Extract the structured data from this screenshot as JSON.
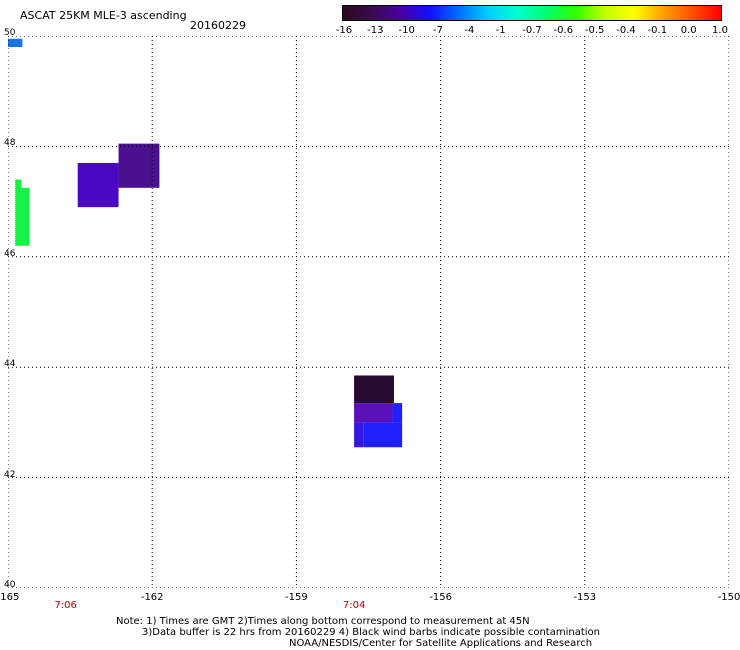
{
  "header": {
    "title": "ASCAT 25KM MLE-3 ascending",
    "date": "20160229"
  },
  "colorbar": {
    "labels": [
      "-16",
      "-13",
      "-10",
      "-7",
      "-4",
      "-1",
      "-0.7",
      "-0.6",
      "-0.5",
      "-0.4",
      "-0.1",
      "0.0",
      "1.0"
    ],
    "colors": [
      "#2a0a1e",
      "#3a0a50",
      "#4a00a0",
      "#1010ff",
      "#0070ff",
      "#00d0ff",
      "#00ffd0",
      "#00ff70",
      "#30ff00",
      "#c0ff00",
      "#ffff00",
      "#ffa000",
      "#ff5000",
      "#ff0000"
    ]
  },
  "map": {
    "lon_range": [
      -165,
      -150
    ],
    "lat_range": [
      40,
      50
    ],
    "lat_ticks": [
      "40",
      "42",
      "44",
      "46",
      "48",
      "50"
    ],
    "lon_ticks": [
      "-165",
      "-162",
      "-159",
      "-156",
      "-153",
      "-150"
    ],
    "time_labels": [
      {
        "text": "7:06",
        "lon": -163.8
      },
      {
        "text": "7:04",
        "lon": -157.8
      }
    ],
    "cells": [
      {
        "lon0": -165.0,
        "lon1": -164.7,
        "lat0": 49.8,
        "lat1": 49.95,
        "color": "#1874e8"
      },
      {
        "lon0": -164.85,
        "lon1": -164.72,
        "lat0": 46.2,
        "lat1": 47.4,
        "color": "#18f048"
      },
      {
        "lon0": -164.72,
        "lon1": -164.55,
        "lat0": 46.2,
        "lat1": 47.25,
        "color": "#18f048"
      },
      {
        "lon0": -163.55,
        "lon1": -162.7,
        "lat0": 46.9,
        "lat1": 47.7,
        "color": "#4a08c4"
      },
      {
        "lon0": -162.7,
        "lon1": -161.85,
        "lat0": 47.25,
        "lat1": 48.05,
        "color": "#4a1090"
      },
      {
        "lon0": -157.8,
        "lon1": -156.97,
        "lat0": 43.35,
        "lat1": 43.85,
        "color": "#280a30"
      },
      {
        "lon0": -157.8,
        "lon1": -157.0,
        "lat0": 43.0,
        "lat1": 43.35,
        "color": "#5a10b8"
      },
      {
        "lon0": -157.0,
        "lon1": -156.8,
        "lat0": 43.0,
        "lat1": 43.35,
        "color": "#2020ff"
      },
      {
        "lon0": -157.8,
        "lon1": -157.6,
        "lat0": 42.55,
        "lat1": 43.0,
        "color": "#3418e0"
      },
      {
        "lon0": -157.6,
        "lon1": -156.8,
        "lat0": 42.55,
        "lat1": 43.0,
        "color": "#2020ff"
      }
    ]
  },
  "notes": {
    "line1": "Note: 1) Times are GMT 2)Times along bottom correspond to measurement at 45N",
    "line2": "3)Data buffer is 22 hrs from 20160229 4) Black wind barbs indicate possible contamination",
    "line3": "NOAA/NESDIS/Center for Satellite Applications and Research"
  }
}
